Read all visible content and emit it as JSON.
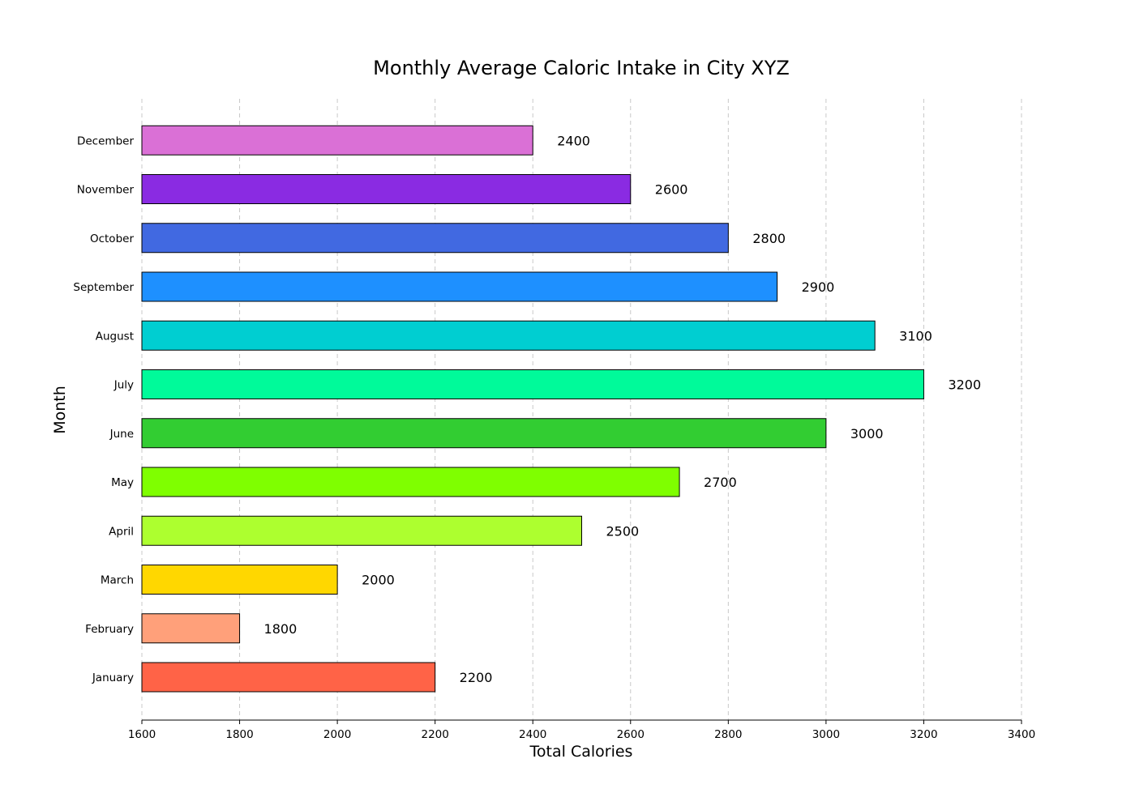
{
  "chart_data": {
    "type": "bar",
    "orientation": "horizontal",
    "title": "Monthly Average Caloric Intake in City XYZ",
    "xlabel": "Total Calories",
    "ylabel": "Month",
    "categories": [
      "January",
      "February",
      "March",
      "April",
      "May",
      "June",
      "July",
      "August",
      "September",
      "October",
      "November",
      "December"
    ],
    "values": [
      2200,
      1800,
      2000,
      2500,
      2700,
      3000,
      3200,
      3100,
      2900,
      2800,
      2600,
      2400
    ],
    "value_labels": [
      "2200",
      "1800",
      "2000",
      "2500",
      "2700",
      "3000",
      "3200",
      "3100",
      "2900",
      "2800",
      "2600",
      "2400"
    ],
    "colors": [
      "#FF6347",
      "#FFA07A",
      "#FFD700",
      "#ADFF2F",
      "#7FFF00",
      "#32CD32",
      "#00FA9A",
      "#00CED1",
      "#1E90FF",
      "#4169E1",
      "#8A2BE2",
      "#DA70D6"
    ],
    "xlim": [
      1600,
      3400
    ],
    "xticks": [
      1600,
      1800,
      2000,
      2200,
      2400,
      2600,
      2800,
      3000,
      3200,
      3400
    ],
    "xtick_labels": [
      "1600",
      "1800",
      "2000",
      "2200",
      "2400",
      "2600",
      "2800",
      "3000",
      "3200",
      "3400"
    ],
    "grid": "vertical dashed",
    "legend": "none"
  }
}
